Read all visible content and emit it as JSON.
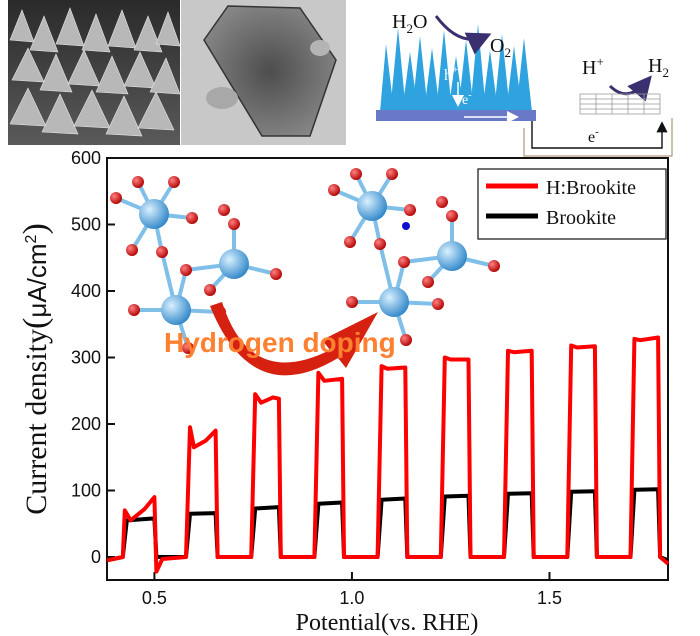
{
  "chart_data": {
    "type": "line",
    "xlabel": "Potential(vs. RHE)",
    "ylabel": "Current density(μA/cm²)",
    "ylabel_main": "Current density",
    "ylabel_unit_open": "(",
    "ylabel_unit_mu": "μ",
    "ylabel_unit_rest": "A/cm",
    "ylabel_unit_sup": "2",
    "ylabel_unit_close": ")",
    "xlim": [
      0.38,
      1.8
    ],
    "ylim": [
      -10,
      600
    ],
    "x_ticks": [
      0.5,
      1.0,
      1.5
    ],
    "x_tick_labels": [
      "0.5",
      "1.0",
      "1.5"
    ],
    "y_ticks": [
      0,
      100,
      200,
      300,
      400,
      500,
      600
    ],
    "y_tick_labels": [
      "0",
      "100",
      "200",
      "300",
      "400",
      "500",
      "600"
    ],
    "legend": {
      "placement": "top-right",
      "entries": [
        {
          "label": "H:Brookite",
          "color": "#ff0000"
        },
        {
          "label": "Brookite",
          "color": "#000000"
        }
      ]
    },
    "series": [
      {
        "name": "H:Brookite",
        "color": "#ff0000",
        "points": [
          [
            0.38,
            -5
          ],
          [
            0.42,
            0
          ],
          [
            0.425,
            70
          ],
          [
            0.44,
            55
          ],
          [
            0.45,
            60
          ],
          [
            0.475,
            72
          ],
          [
            0.5,
            90
          ],
          [
            0.505,
            -22
          ],
          [
            0.52,
            -3
          ],
          [
            0.58,
            0
          ],
          [
            0.59,
            195
          ],
          [
            0.6,
            165
          ],
          [
            0.63,
            175
          ],
          [
            0.655,
            190
          ],
          [
            0.66,
            0
          ],
          [
            0.745,
            0
          ],
          [
            0.755,
            245
          ],
          [
            0.77,
            232
          ],
          [
            0.8,
            240
          ],
          [
            0.815,
            238
          ],
          [
            0.82,
            0
          ],
          [
            0.905,
            0
          ],
          [
            0.915,
            277
          ],
          [
            0.93,
            265
          ],
          [
            0.975,
            268
          ],
          [
            0.98,
            0
          ],
          [
            1.065,
            0
          ],
          [
            1.075,
            287
          ],
          [
            1.09,
            283
          ],
          [
            1.135,
            285
          ],
          [
            1.14,
            0
          ],
          [
            1.225,
            0
          ],
          [
            1.235,
            300
          ],
          [
            1.25,
            297
          ],
          [
            1.295,
            297
          ],
          [
            1.3,
            0
          ],
          [
            1.385,
            0
          ],
          [
            1.395,
            310
          ],
          [
            1.41,
            308
          ],
          [
            1.455,
            310
          ],
          [
            1.46,
            0
          ],
          [
            1.545,
            0
          ],
          [
            1.555,
            318
          ],
          [
            1.57,
            315
          ],
          [
            1.615,
            317
          ],
          [
            1.62,
            0
          ],
          [
            1.705,
            0
          ],
          [
            1.715,
            328
          ],
          [
            1.73,
            326
          ],
          [
            1.775,
            330
          ],
          [
            1.78,
            0
          ],
          [
            1.8,
            -10
          ]
        ]
      },
      {
        "name": "Brookite",
        "color": "#000000",
        "points": [
          [
            0.38,
            -5
          ],
          [
            0.42,
            0
          ],
          [
            0.43,
            55
          ],
          [
            0.5,
            58
          ],
          [
            0.505,
            0
          ],
          [
            0.58,
            0
          ],
          [
            0.59,
            65
          ],
          [
            0.655,
            66
          ],
          [
            0.66,
            0
          ],
          [
            0.745,
            0
          ],
          [
            0.755,
            73
          ],
          [
            0.815,
            75
          ],
          [
            0.82,
            0
          ],
          [
            0.905,
            0
          ],
          [
            0.915,
            80
          ],
          [
            0.975,
            82
          ],
          [
            0.98,
            0
          ],
          [
            1.065,
            0
          ],
          [
            1.075,
            86
          ],
          [
            1.135,
            88
          ],
          [
            1.14,
            0
          ],
          [
            1.225,
            0
          ],
          [
            1.235,
            91
          ],
          [
            1.295,
            92
          ],
          [
            1.3,
            0
          ],
          [
            1.385,
            0
          ],
          [
            1.395,
            95
          ],
          [
            1.455,
            96
          ],
          [
            1.46,
            0
          ],
          [
            1.545,
            0
          ],
          [
            1.555,
            98
          ],
          [
            1.615,
            99
          ],
          [
            1.62,
            0
          ],
          [
            1.705,
            0
          ],
          [
            1.715,
            101
          ],
          [
            1.775,
            102
          ],
          [
            1.78,
            0
          ],
          [
            1.8,
            -5
          ]
        ]
      }
    ]
  },
  "schematic": {
    "h2o_main": "H",
    "h2o_sub": "2",
    "h2o_tail": "O",
    "o2_main": "O",
    "o2_sub": "2",
    "hole": "h",
    "hole_sup": "+",
    "electron": "e",
    "electron_sup": "-",
    "proton": "H",
    "proton_sup": "+",
    "h2_main": "H",
    "h2_sub": "2",
    "circuit_electron": "e",
    "circuit_electron_sup": "-"
  },
  "annotation": {
    "doping_label": "Hydrogen doping"
  },
  "colors": {
    "doping_label": "#ff8030",
    "arrow": "#d62010",
    "crystal": "#2ea3e0",
    "substrate": "#6a78c8",
    "atom_ti": "#5aa8dc",
    "atom_o": "#cc1010",
    "atom_h": "#1010cc"
  }
}
